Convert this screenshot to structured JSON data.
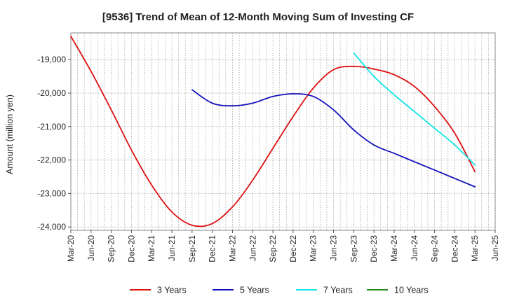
{
  "chart_data": {
    "type": "line",
    "title": "[9536]  Trend of Mean of 12-Month Moving Sum of Investing CF",
    "xlabel": "",
    "ylabel": "Amount (million yen)",
    "ylim": [
      -24100,
      -18200
    ],
    "yticks": [
      -24000,
      -23000,
      -22000,
      -21000,
      -20000,
      -19000
    ],
    "ytick_labels": [
      "-24,000",
      "-23,000",
      "-22,000",
      "-21,000",
      "-20,000",
      "-19,000"
    ],
    "xticks": [
      "Mar-20",
      "Jun-20",
      "Sep-20",
      "Dec-20",
      "Mar-21",
      "Jun-21",
      "Sep-21",
      "Dec-21",
      "Mar-22",
      "Jun-22",
      "Sep-22",
      "Dec-22",
      "Mar-23",
      "Jun-23",
      "Sep-23",
      "Dec-23",
      "Mar-24",
      "Jun-24",
      "Sep-24",
      "Dec-24",
      "Mar-25",
      "Jun-25"
    ],
    "grid": true,
    "legend_position": "bottom",
    "series": [
      {
        "name": "3 Years",
        "color": "#dd1111",
        "points": [
          [
            0,
            -18300
          ],
          [
            1,
            -19350
          ],
          [
            2,
            -20500
          ],
          [
            3,
            -21700
          ],
          [
            4,
            -22750
          ],
          [
            5,
            -23550
          ],
          [
            6,
            -23950
          ],
          [
            7,
            -23900
          ],
          [
            8,
            -23400
          ],
          [
            9,
            -22600
          ],
          [
            10,
            -21650
          ],
          [
            11,
            -20700
          ],
          [
            12,
            -19850
          ],
          [
            13,
            -19300
          ],
          [
            14,
            -19200
          ],
          [
            15,
            -19280
          ],
          [
            16,
            -19450
          ],
          [
            17,
            -19800
          ],
          [
            18,
            -20400
          ],
          [
            19,
            -21200
          ],
          [
            20,
            -22350
          ]
        ]
      },
      {
        "name": "5 Years",
        "color": "#1111bb",
        "points": [
          [
            6,
            -19900
          ],
          [
            7,
            -20300
          ],
          [
            8,
            -20380
          ],
          [
            9,
            -20300
          ],
          [
            10,
            -20100
          ],
          [
            11,
            -20020
          ],
          [
            12,
            -20100
          ],
          [
            13,
            -20500
          ],
          [
            14,
            -21100
          ],
          [
            15,
            -21550
          ],
          [
            16,
            -21800
          ],
          [
            17,
            -22050
          ],
          [
            18,
            -22300
          ],
          [
            19,
            -22550
          ],
          [
            20,
            -22800
          ]
        ]
      },
      {
        "name": "7 Years",
        "color": "#11e5e5",
        "points": [
          [
            14,
            -18800
          ],
          [
            15,
            -19500
          ],
          [
            16,
            -20050
          ],
          [
            17,
            -20550
          ],
          [
            18,
            -21050
          ],
          [
            19,
            -21550
          ],
          [
            20,
            -22150
          ]
        ]
      },
      {
        "name": "10 Years",
        "color": "#228822",
        "points": []
      }
    ]
  }
}
